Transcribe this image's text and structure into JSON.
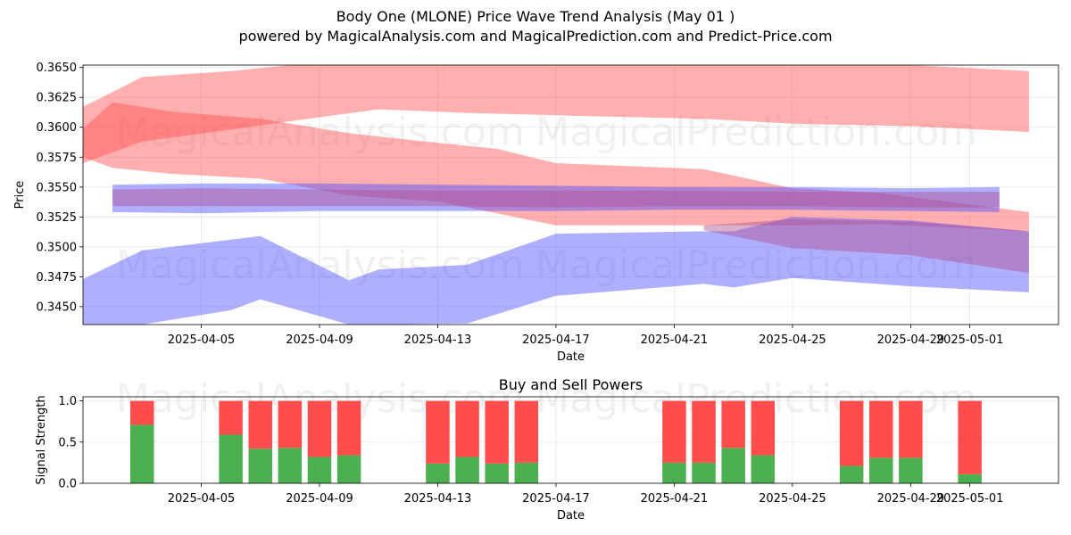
{
  "title": "Body One (MLONE) Price Wave Trend Analysis (May 01 )",
  "subtitle": "powered by MagicalAnalysis.com and MagicalPrediction.com and Predict-Price.com",
  "watermarks": [
    "MagicalAnalysis.com",
    "MagicalPrediction.com"
  ],
  "colors": {
    "red": "#ff4d4d",
    "blue": "#4d4dff",
    "green": "#4caf50",
    "purple": "#b05090"
  },
  "chart_data": [
    {
      "type": "area",
      "xlabel": "Date",
      "ylabel": "Price",
      "ylim": [
        0.3435,
        0.3652
      ],
      "xlim": [
        "2025-04-01",
        "2025-05-04"
      ],
      "x_ticks": [
        "2025-04-05",
        "2025-04-09",
        "2025-04-13",
        "2025-04-17",
        "2025-04-21",
        "2025-04-25",
        "2025-04-29",
        "2025-05-01"
      ],
      "y_ticks": [
        "0.3450",
        "0.3475",
        "0.3500",
        "0.3525",
        "0.3550",
        "0.3575",
        "0.3600",
        "0.3625",
        "0.3650"
      ],
      "grid": true,
      "series": [
        {
          "color": "red",
          "x": [
            "2025-04-01",
            "2025-04-03",
            "2025-04-06",
            "2025-04-08",
            "2025-04-11",
            "2025-04-14",
            "2025-04-17",
            "2025-04-22",
            "2025-04-25",
            "2025-04-29",
            "2025-05-03"
          ],
          "upper": [
            0.3617,
            0.3642,
            0.3647,
            0.3652,
            0.3652,
            0.3652,
            0.3652,
            0.3652,
            0.3652,
            0.3652,
            0.3647
          ],
          "lower": [
            0.357,
            0.3588,
            0.3598,
            0.3605,
            0.3615,
            0.3612,
            0.361,
            0.3607,
            0.3603,
            0.3601,
            0.3596
          ]
        },
        {
          "color": "red",
          "x": [
            "2025-04-01",
            "2025-04-02",
            "2025-04-04",
            "2025-04-07",
            "2025-04-10",
            "2025-04-13",
            "2025-04-15",
            "2025-04-17",
            "2025-04-22",
            "2025-04-25",
            "2025-04-28",
            "2025-05-03"
          ],
          "upper": [
            0.3599,
            0.3621,
            0.3613,
            0.3607,
            0.3595,
            0.3587,
            0.3582,
            0.357,
            0.3565,
            0.3549,
            0.3545,
            0.3529
          ],
          "lower": [
            0.3575,
            0.3566,
            0.3561,
            0.3557,
            0.3543,
            0.3538,
            0.3528,
            0.3518,
            0.3518,
            0.3518,
            0.3519,
            0.3513
          ]
        },
        {
          "color": "blue",
          "x": [
            "2025-04-01",
            "2025-04-03",
            "2025-04-06",
            "2025-04-07",
            "2025-04-10",
            "2025-04-11",
            "2025-04-14",
            "2025-04-17",
            "2025-04-22",
            "2025-04-23",
            "2025-04-25",
            "2025-04-29",
            "2025-05-03"
          ],
          "upper": [
            0.3473,
            0.3497,
            0.3506,
            0.3509,
            0.3472,
            0.3481,
            0.3485,
            0.3511,
            0.3513,
            0.3513,
            0.3525,
            0.3522,
            0.3513
          ],
          "lower": [
            0.3435,
            0.3435,
            0.3447,
            0.3456,
            0.3435,
            0.3435,
            0.3436,
            0.3459,
            0.3469,
            0.3466,
            0.3474,
            0.3467,
            0.3462
          ]
        },
        {
          "color": "purple",
          "x": [
            "2025-04-22",
            "2025-04-25",
            "2025-04-29",
            "2025-05-03"
          ],
          "upper": [
            0.3518,
            0.3523,
            0.3521,
            0.3513
          ],
          "lower": [
            0.3514,
            0.3499,
            0.3493,
            0.3478
          ]
        },
        {
          "color": "blue",
          "x": [
            "2025-04-02",
            "2025-04-05",
            "2025-04-09",
            "2025-04-13",
            "2025-04-17",
            "2025-04-21",
            "2025-04-25",
            "2025-04-29",
            "2025-05-02"
          ],
          "upper": [
            0.3552,
            0.3553,
            0.3553,
            0.3552,
            0.3551,
            0.355,
            0.355,
            0.3549,
            0.355
          ],
          "lower": [
            0.3529,
            0.3528,
            0.353,
            0.353,
            0.353,
            0.3531,
            0.3531,
            0.353,
            0.3529
          ]
        },
        {
          "color": "purple",
          "x": [
            "2025-04-02",
            "2025-04-05",
            "2025-04-09",
            "2025-04-13",
            "2025-04-17",
            "2025-04-21",
            "2025-04-25",
            "2025-04-29",
            "2025-05-02"
          ],
          "upper": [
            0.3548,
            0.3549,
            0.3548,
            0.3547,
            0.3547,
            0.3547,
            0.3546,
            0.3546,
            0.3546
          ],
          "lower": [
            0.3534,
            0.3534,
            0.3534,
            0.3534,
            0.3533,
            0.3534,
            0.3534,
            0.3533,
            0.3533
          ]
        }
      ]
    },
    {
      "type": "bar",
      "title": "Buy and Sell Powers",
      "xlabel": "Date",
      "ylabel": "Signal Strength",
      "ylim": [
        0,
        1.05
      ],
      "y_ticks": [
        "0.0",
        "0.5",
        "1.0"
      ],
      "x_ticks": [
        "2025-04-05",
        "2025-04-09",
        "2025-04-13",
        "2025-04-17",
        "2025-04-21",
        "2025-04-25",
        "2025-04-29",
        "2025-05-01"
      ],
      "grid": true,
      "categories": [
        "2025-04-03",
        "2025-04-06",
        "2025-04-07",
        "2025-04-08",
        "2025-04-09",
        "2025-04-10",
        "2025-04-13",
        "2025-04-14",
        "2025-04-15",
        "2025-04-16",
        "2025-04-21",
        "2025-04-22",
        "2025-04-23",
        "2025-04-24",
        "2025-04-27",
        "2025-04-28",
        "2025-04-29",
        "2025-05-01"
      ],
      "series": [
        {
          "color": "green",
          "values": [
            0.71,
            0.59,
            0.42,
            0.43,
            0.32,
            0.34,
            0.24,
            0.32,
            0.24,
            0.25,
            0.25,
            0.25,
            0.43,
            0.34,
            0.21,
            0.31,
            0.31,
            0.11
          ]
        },
        {
          "color": "red",
          "values": [
            0.29,
            0.41,
            0.58,
            0.57,
            0.68,
            0.66,
            0.76,
            0.68,
            0.76,
            0.75,
            0.75,
            0.75,
            0.57,
            0.66,
            0.79,
            0.69,
            0.69,
            0.89
          ]
        }
      ]
    }
  ]
}
